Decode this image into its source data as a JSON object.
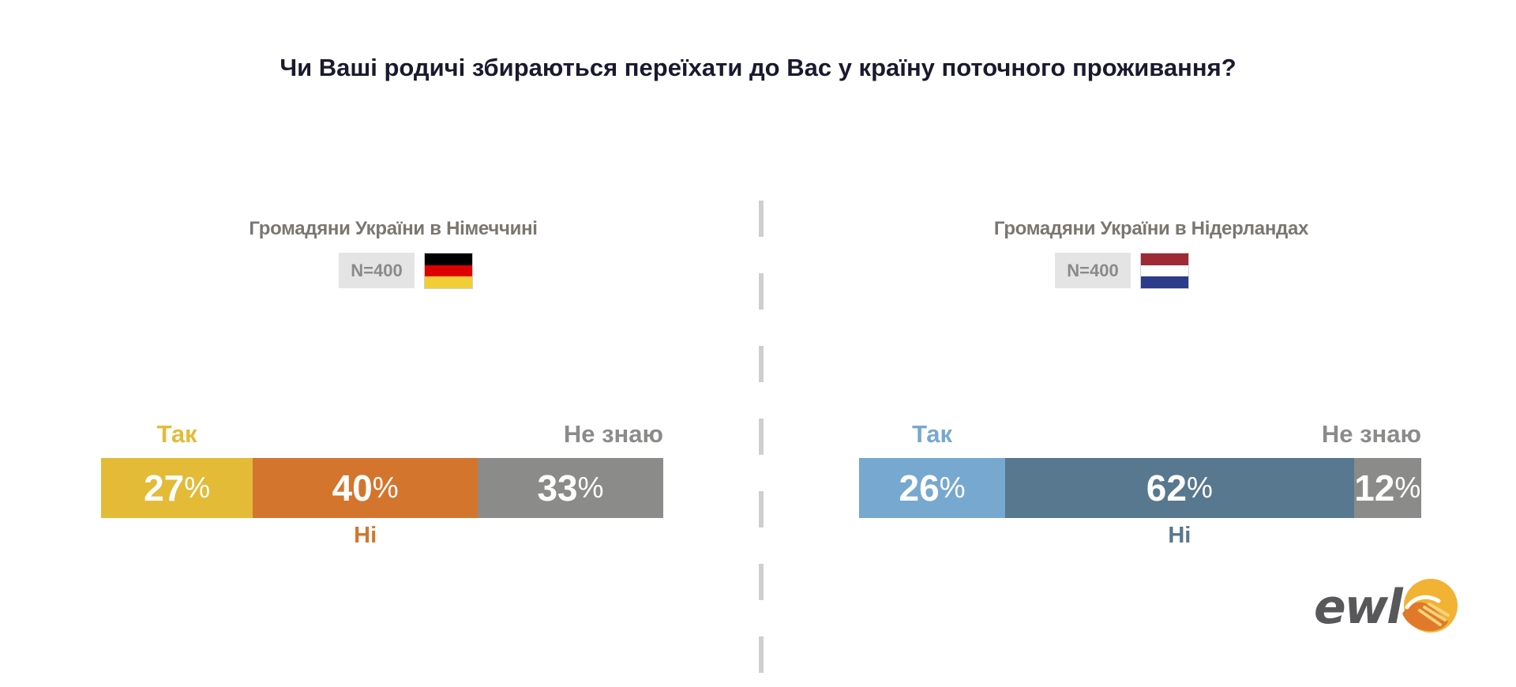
{
  "title": "Чи Ваші родичі збираються переїхати до Вас у країну поточного проживання?",
  "chart_data": [
    {
      "type": "bar",
      "orientation": "stacked-horizontal-100",
      "title": "Громадяни України в Німеччині",
      "sample": "N=400",
      "country_flag": "germany-flag",
      "series": [
        {
          "name": "Так",
          "value": 27,
          "color": "#e3bb37"
        },
        {
          "name": "Ні",
          "value": 40,
          "color": "#d4752e"
        },
        {
          "name": "Не знаю",
          "value": 33,
          "color": "#8b8b8a"
        }
      ],
      "unit": "%"
    },
    {
      "type": "bar",
      "orientation": "stacked-horizontal-100",
      "title": "Громадяни України в Нідерландах",
      "sample": "N=400",
      "country_flag": "netherlands-flag",
      "series": [
        {
          "name": "Так",
          "value": 26,
          "color": "#77a8cf"
        },
        {
          "name": "Ні",
          "value": 62,
          "color": "#57788f"
        },
        {
          "name": "Не знаю",
          "value": 12,
          "color": "#8b8b8a"
        }
      ],
      "unit": "%"
    }
  ],
  "logo": {
    "text": "ewl",
    "icon": "handshake-icon",
    "colors": [
      "#f2b233",
      "#e07a2a"
    ]
  }
}
